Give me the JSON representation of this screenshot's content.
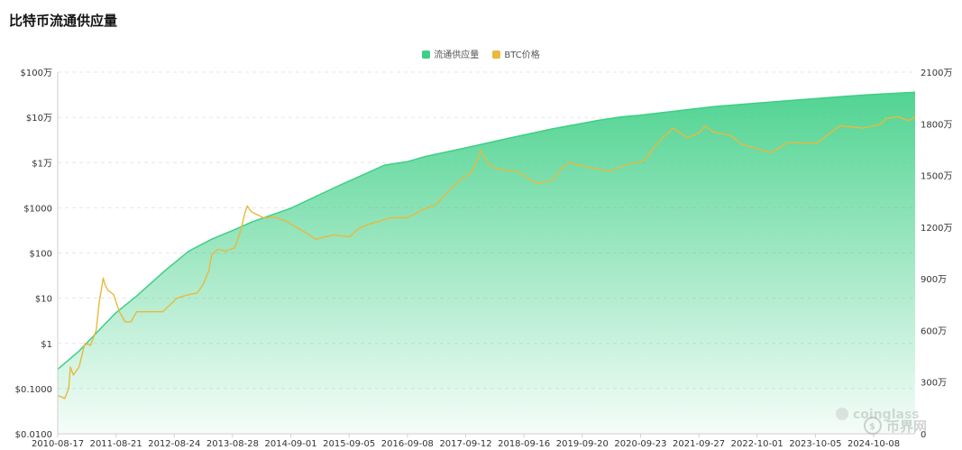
{
  "title": "比特币流通供应量",
  "legend": [
    {
      "label": "流通供应量",
      "color": "#3ecf86"
    },
    {
      "label": "BTC价格",
      "color": "#e8b93e"
    }
  ],
  "watermarks": [
    "coinglass",
    "币界网"
  ],
  "chart_data": {
    "type": "area",
    "x_tick_labels": [
      "2010-08-17",
      "2011-08-21",
      "2012-08-24",
      "2013-08-28",
      "2014-09-01",
      "2015-09-05",
      "2016-09-08",
      "2017-09-12",
      "2018-09-16",
      "2019-09-20",
      "2020-09-23",
      "2021-09-27",
      "2022-10-01",
      "2023-10-05",
      "2024-10-08"
    ],
    "left_axis": {
      "scale": "log",
      "ylim": [
        0.01,
        1000000
      ],
      "ticks": [
        0.01,
        0.1,
        1,
        10,
        100,
        1000,
        10000,
        100000,
        1000000
      ],
      "tick_labels": [
        "$0.0100",
        "$0.1000",
        "$1",
        "$10",
        "$100",
        "$1000",
        "$1万",
        "$10万",
        "$100万"
      ]
    },
    "right_axis": {
      "scale": "linear",
      "ylim": [
        0,
        21000000
      ],
      "ticks": [
        0,
        3000000,
        6000000,
        9000000,
        12000000,
        15000000,
        18000000,
        21000000
      ],
      "tick_labels": [
        "0",
        "300万",
        "600万",
        "900万",
        "1200万",
        "1500万",
        "1800万",
        "2100万"
      ]
    },
    "grid": true,
    "legend_position": "top-center",
    "series": [
      {
        "name": "流通供应量",
        "axis": "right",
        "kind": "area",
        "color": "#3ecf86",
        "x": [
          2010.63,
          2011.0,
          2011.4,
          2011.63,
          2012.0,
          2012.5,
          2012.9,
          2013.3,
          2013.66,
          2014.0,
          2014.67,
          2015.5,
          2016.3,
          2016.69,
          2017.0,
          2017.7,
          2018.5,
          2019.2,
          2020.0,
          2020.4,
          2020.73,
          2021.5,
          2022.0,
          2022.75,
          2023.5,
          2024.3,
          2024.77,
          2025.5
        ],
        "values": [
          3750000,
          4800000,
          6200000,
          7000000,
          8000000,
          9500000,
          10600000,
          11300000,
          11800000,
          12300000,
          13100000,
          14400000,
          15600000,
          15800000,
          16100000,
          16600000,
          17200000,
          17700000,
          18200000,
          18400000,
          18500000,
          18800000,
          19000000,
          19200000,
          19400000,
          19600000,
          19700000,
          19840000
        ]
      },
      {
        "name": "BTC价格",
        "axis": "left",
        "kind": "line",
        "color": "#e8b93e",
        "x": [
          2010.63,
          2010.7,
          2010.75,
          2010.82,
          2010.85,
          2010.9,
          2011.0,
          2011.1,
          2011.2,
          2011.3,
          2011.35,
          2011.42,
          2011.45,
          2011.5,
          2011.6,
          2011.7,
          2011.8,
          2011.9,
          2012.0,
          2012.2,
          2012.45,
          2012.7,
          2012.9,
          2013.05,
          2013.15,
          2013.25,
          2013.3,
          2013.4,
          2013.55,
          2013.7,
          2013.8,
          2013.88,
          2013.92,
          2013.96,
          2014.0,
          2014.2,
          2014.4,
          2014.6,
          2014.8,
          2015.0,
          2015.1,
          2015.4,
          2015.7,
          2015.85,
          2016.0,
          2016.4,
          2016.7,
          2016.95,
          2017.2,
          2017.4,
          2017.6,
          2017.8,
          2017.9,
          2017.97,
          2018.1,
          2018.3,
          2018.6,
          2018.85,
          2018.95,
          2019.2,
          2019.4,
          2019.5,
          2019.8,
          2020.0,
          2020.2,
          2020.5,
          2020.8,
          2020.95,
          2021.1,
          2021.3,
          2021.55,
          2021.75,
          2021.86,
          2022.0,
          2022.3,
          2022.5,
          2022.9,
          2023.0,
          2023.3,
          2023.6,
          2023.8,
          2024.0,
          2024.2,
          2024.6,
          2024.9,
          2025.0,
          2025.2,
          2025.4,
          2025.5
        ],
        "values": [
          0.07,
          0.065,
          0.06,
          0.1,
          0.3,
          0.2,
          0.3,
          1.0,
          0.9,
          2,
          8,
          28,
          20,
          15,
          12,
          5,
          3,
          3,
          5,
          5,
          5,
          10,
          12,
          13,
          20,
          40,
          90,
          120,
          110,
          130,
          300,
          800,
          1100,
          900,
          800,
          600,
          620,
          500,
          350,
          250,
          200,
          250,
          230,
          350,
          420,
          600,
          600,
          900,
          1200,
          2300,
          4000,
          6000,
          11000,
          18000,
          9000,
          7000,
          6500,
          4000,
          3500,
          4000,
          8000,
          10000,
          8000,
          7200,
          6500,
          9000,
          11000,
          20000,
          33000,
          58000,
          35000,
          45000,
          65000,
          47000,
          40000,
          25000,
          18000,
          16500,
          28000,
          27000,
          27000,
          43000,
          65000,
          58000,
          70000,
          95000,
          102000,
          85000,
          105000
        ]
      }
    ]
  }
}
